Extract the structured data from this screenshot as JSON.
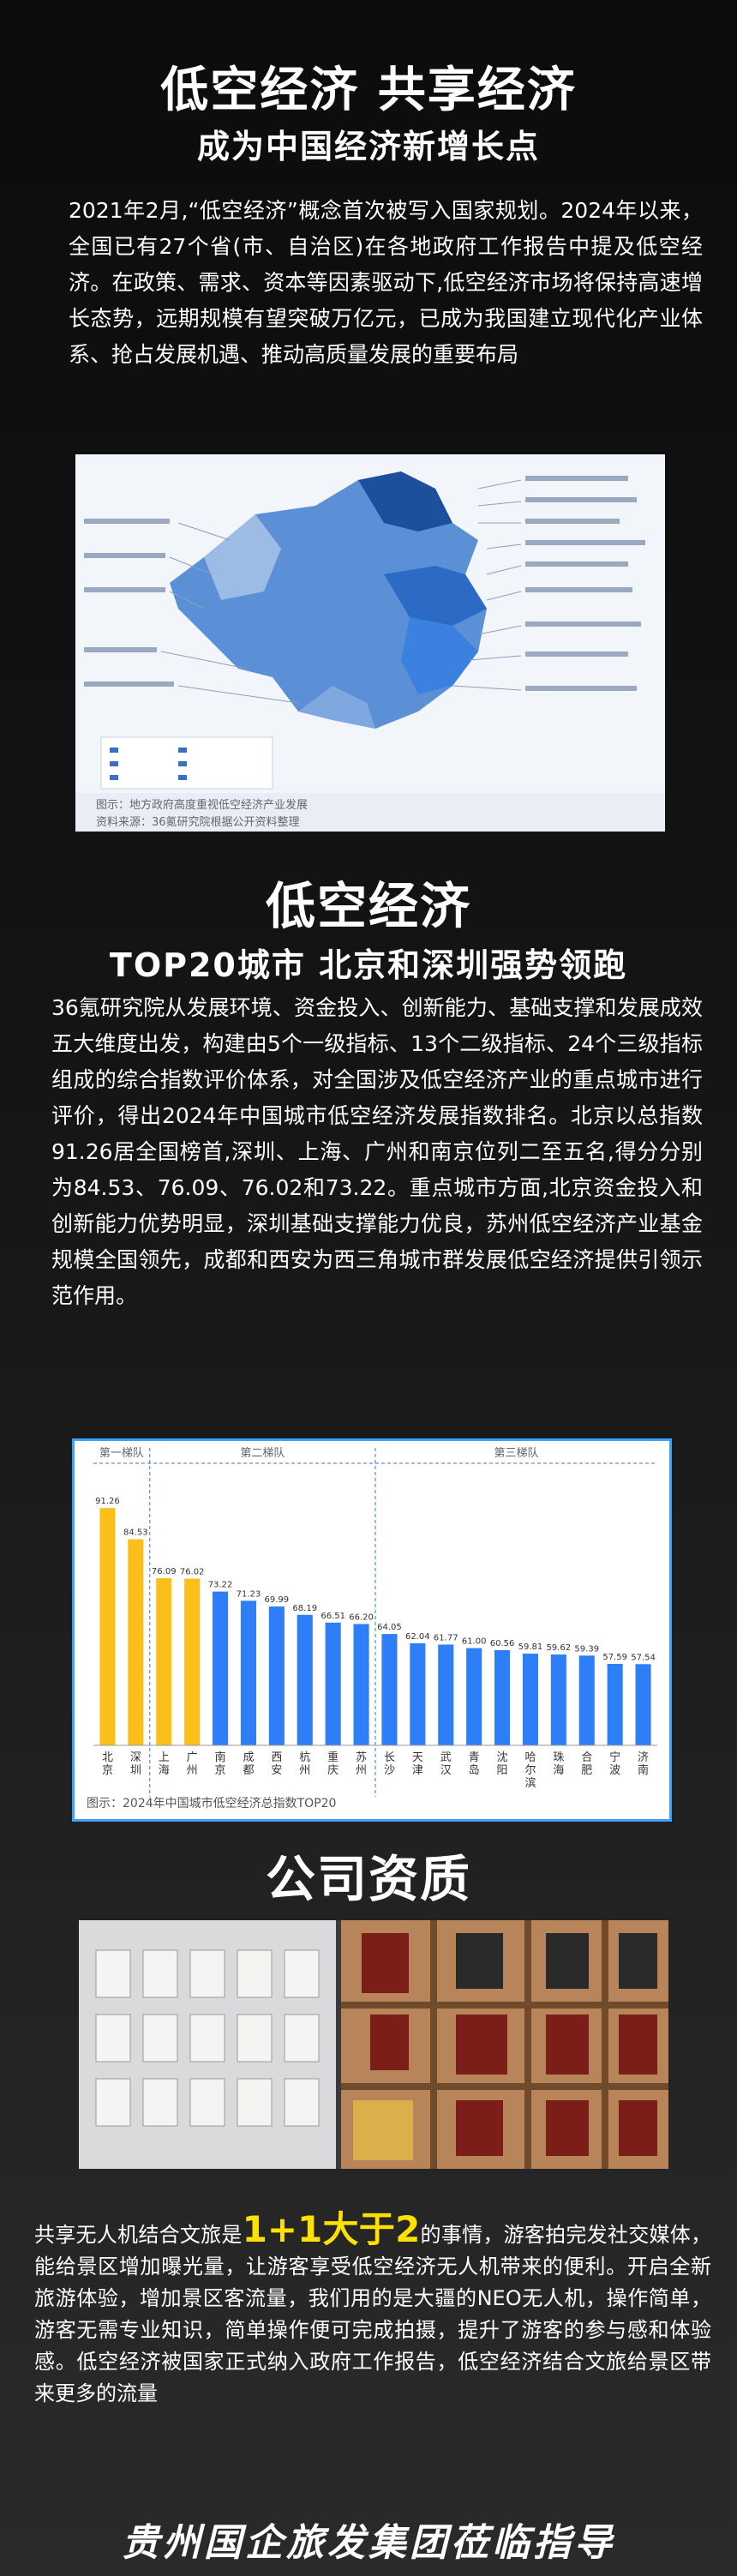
{
  "header": {
    "title": "低空经济 共享经济",
    "subtitle": "成为中国经济新增长点"
  },
  "intro": {
    "paragraph": "2021年2月,“低空经济”概念首次被写入国家规划。2024年以来，全国已有27个省(市、自治区)在各地政府工作报告中提及低空经济。在政策、需求、资本等因素驱动下,低空经济市场将保持高速增长态势，远期规模有望突破万亿元，已成为我国建立现代化产业体系、抢占发展机遇、推动高质量发展的重要布局"
  },
  "map_figure": {
    "caption_line1": "图示：地方政府高度重视低空经济产业发展",
    "caption_line2": "资料来源：36氪研究院根据公开资料整理"
  },
  "section2": {
    "title": "低空经济",
    "subtitle": "TOP20城市 北京和深圳强势领跑",
    "paragraph": "36氪研究院从发展环境、资金投入、创新能力、基础支撑和发展成效五大维度出发，构建由5个一级指标、13个二级指标、24个三级指标组成的综合指数评价体系，对全国涉及低空经济产业的重点城市进行评价，得出2024年中国城市低空经济发展指数排名。北京以总指数91.26居全国榜首,深圳、上海、广州和南京位列二至五名,得分分别为84.53、76.09、76.02和73.22。重点城市方面,北京资金投入和创新能力优势明显，深圳基础支撑能力优良，苏州低空经济产业基金规模全国领先，成都和西安为西三角城市群发展低空经济提供引领示范作用。"
  },
  "chart_data": {
    "type": "bar",
    "title": "图示：2024年中国城市低空经济总指数TOP20",
    "groups": [
      {
        "name": "第一梯队",
        "count": 2
      },
      {
        "name": "第二梯队",
        "count": 8
      },
      {
        "name": "第三梯队",
        "count": 10
      }
    ],
    "categories": [
      "北京",
      "深圳",
      "上海",
      "广州",
      "南京",
      "成都",
      "西安",
      "杭州",
      "重庆",
      "苏州",
      "长沙",
      "天津",
      "武汉",
      "青岛",
      "沈阳",
      "哈尔滨",
      "珠海",
      "合肥",
      "宁波",
      "济南"
    ],
    "values": [
      91.26,
      84.53,
      76.09,
      76.02,
      73.22,
      71.23,
      69.99,
      68.19,
      66.51,
      66.2,
      64.05,
      62.04,
      61.77,
      61.0,
      60.56,
      59.81,
      59.62,
      59.39,
      57.59,
      57.54
    ],
    "colors": {
      "tier1": "#fbbf1a",
      "tier2plus": "#2d7ef7"
    },
    "ylim": [
      40,
      95
    ]
  },
  "section3": {
    "title": "公司资质"
  },
  "closing": {
    "prefix": "共享无人机结合文旅是",
    "highlight": "1+1大于2",
    "rest": "的事情，游客拍完发社交媒体，能给景区增加曝光量，让游客享受低空经济无人机带来的便利。开启全新旅游体验，增加景区客流量，我们用的是大疆的NEO无人机，操作简单，游客无需专业知识，简单操作便可完成拍摄，提升了游客的参与感和体验感。低空经济被国家正式纳入政府工作报告，低空经济结合文旅给景区带来更多的流量"
  },
  "footer": {
    "text": "贵州国企旅发集团莅临指导"
  }
}
